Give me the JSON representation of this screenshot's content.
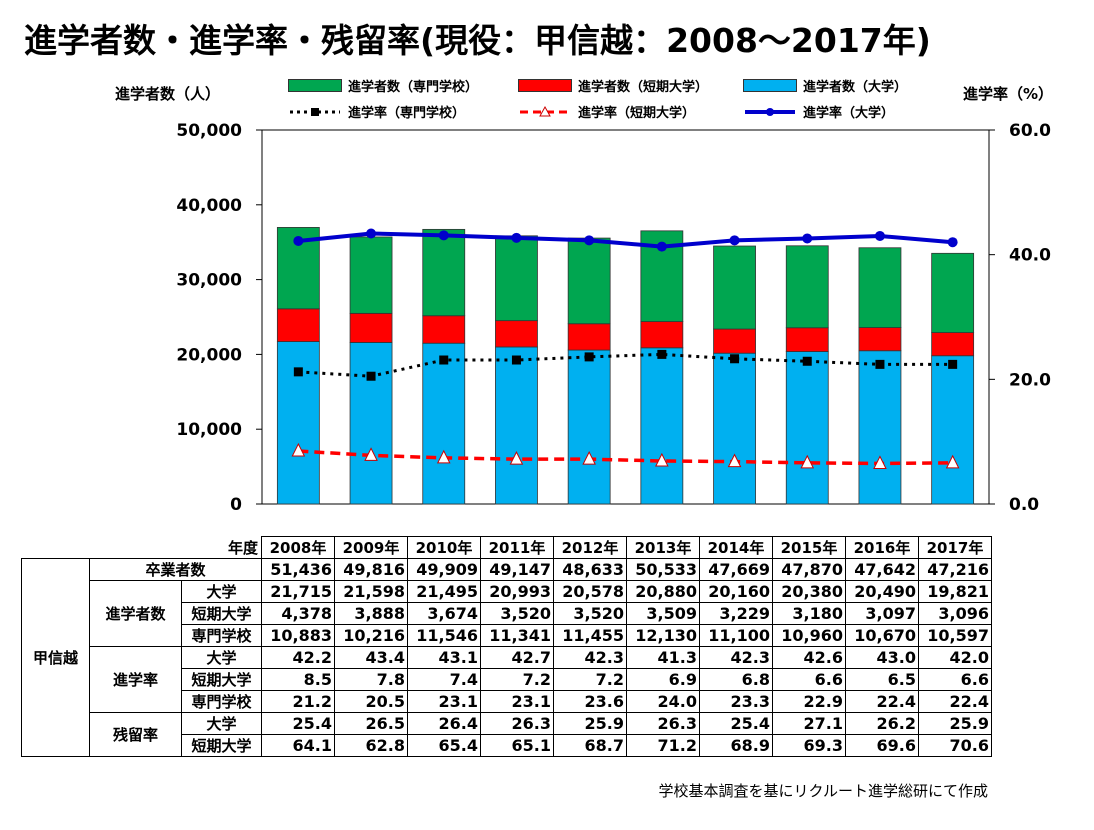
{
  "title": "進学者数・進学率・残留率(現役：甲信越：2008～2017年)",
  "left_axis_title": "進学者数（人）",
  "right_axis_title": "進学率（%）",
  "source_note": "学校基本調査を基にリクルート進学総研にて作成",
  "colors": {
    "senmon": "#00a650",
    "tanki": "#ff0000",
    "daigaku": "#00b0f0",
    "rate_daigaku": "#0000cc",
    "rate_tanki": "#ff0000",
    "rate_senmon": "#000000"
  },
  "legend": {
    "bar_senmon": "進学者数（専門学校）",
    "bar_tanki": "進学者数（短期大学）",
    "bar_daigaku": "進学者数（大学）",
    "line_senmon": "進学率（専門学校）",
    "line_tanki": "進学率（短期大学）",
    "line_daigaku": "進学率（大学）"
  },
  "chart_data": {
    "type": "bar",
    "stacked": true,
    "categories": [
      "2008年",
      "2009年",
      "2010年",
      "2011年",
      "2012年",
      "2013年",
      "2014年",
      "2015年",
      "2016年",
      "2017年"
    ],
    "left_ylim": [
      0,
      50000
    ],
    "left_ticks": [
      "0",
      "10,000",
      "20,000",
      "30,000",
      "40,000",
      "50,000"
    ],
    "right_ylim": [
      0,
      60
    ],
    "right_ticks": [
      "0.0",
      "20.0",
      "40.0",
      "60.0"
    ],
    "bar_series": [
      {
        "name": "進学者数（大学）",
        "values": [
          21715,
          21598,
          21495,
          20993,
          20578,
          20880,
          20160,
          20380,
          20490,
          19821
        ]
      },
      {
        "name": "進学者数（短期大学）",
        "values": [
          4378,
          3888,
          3674,
          3520,
          3520,
          3509,
          3229,
          3180,
          3097,
          3096
        ]
      },
      {
        "name": "進学者数（専門学校）",
        "values": [
          10883,
          10216,
          11546,
          11341,
          11455,
          12130,
          11100,
          10960,
          10670,
          10597
        ]
      }
    ],
    "line_series": [
      {
        "name": "進学率（大学）",
        "values": [
          42.2,
          43.4,
          43.1,
          42.7,
          42.3,
          41.3,
          42.3,
          42.6,
          43.0,
          42.0
        ]
      },
      {
        "name": "進学率（短期大学）",
        "values": [
          8.5,
          7.8,
          7.4,
          7.2,
          7.2,
          6.9,
          6.8,
          6.6,
          6.5,
          6.6
        ]
      },
      {
        "name": "進学率（専門学校）",
        "values": [
          21.2,
          20.5,
          23.1,
          23.1,
          23.6,
          24.0,
          23.3,
          22.9,
          22.4,
          22.4
        ]
      }
    ]
  },
  "table": {
    "year_header": "年度",
    "years": [
      "2008年",
      "2009年",
      "2010年",
      "2011年",
      "2012年",
      "2013年",
      "2014年",
      "2015年",
      "2016年",
      "2017年"
    ],
    "region": "甲信越",
    "graduates_label": "卒業者数",
    "graduates": [
      "51,436",
      "49,816",
      "49,909",
      "49,147",
      "48,633",
      "50,533",
      "47,669",
      "47,870",
      "47,642",
      "47,216"
    ],
    "count_label": "進学者数",
    "count_rows": [
      {
        "label": "大学",
        "values": [
          "21,715",
          "21,598",
          "21,495",
          "20,993",
          "20,578",
          "20,880",
          "20,160",
          "20,380",
          "20,490",
          "19,821"
        ]
      },
      {
        "label": "短期大学",
        "values": [
          "4,378",
          "3,888",
          "3,674",
          "3,520",
          "3,520",
          "3,509",
          "3,229",
          "3,180",
          "3,097",
          "3,096"
        ]
      },
      {
        "label": "専門学校",
        "values": [
          "10,883",
          "10,216",
          "11,546",
          "11,341",
          "11,455",
          "12,130",
          "11,100",
          "10,960",
          "10,670",
          "10,597"
        ]
      }
    ],
    "rate_label": "進学率",
    "rate_rows": [
      {
        "label": "大学",
        "values": [
          "42.2",
          "43.4",
          "43.1",
          "42.7",
          "42.3",
          "41.3",
          "42.3",
          "42.6",
          "43.0",
          "42.0"
        ]
      },
      {
        "label": "短期大学",
        "values": [
          "8.5",
          "7.8",
          "7.4",
          "7.2",
          "7.2",
          "6.9",
          "6.8",
          "6.6",
          "6.5",
          "6.6"
        ]
      },
      {
        "label": "専門学校",
        "values": [
          "21.2",
          "20.5",
          "23.1",
          "23.1",
          "23.6",
          "24.0",
          "23.3",
          "22.9",
          "22.4",
          "22.4"
        ]
      }
    ],
    "residual_label": "残留率",
    "residual_rows": [
      {
        "label": "大学",
        "values": [
          "25.4",
          "26.5",
          "26.4",
          "26.3",
          "25.9",
          "26.3",
          "25.4",
          "27.1",
          "26.2",
          "25.9"
        ]
      },
      {
        "label": "短期大学",
        "values": [
          "64.1",
          "62.8",
          "65.4",
          "65.1",
          "68.7",
          "71.2",
          "68.9",
          "69.3",
          "69.6",
          "70.6"
        ]
      }
    ]
  }
}
